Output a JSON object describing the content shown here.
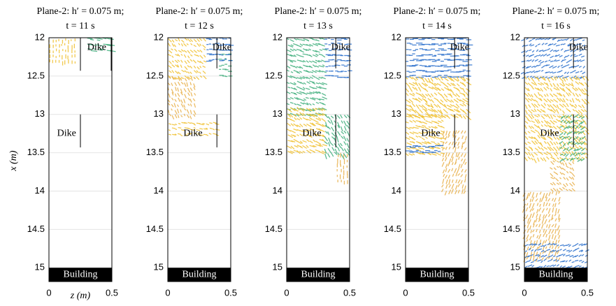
{
  "chart_data": [
    {
      "type": "quiver",
      "title": "Plane-2: h′ = 0.075 m;",
      "subtitle": "t = 11 s",
      "x_label": "z (m)",
      "y_label": "x (m)",
      "xlim": [
        0,
        0.5
      ],
      "xticks": [
        0,
        0.5
      ],
      "ylim": [
        12,
        15.18
      ],
      "yticks": [
        12,
        12.5,
        13,
        13.5,
        14,
        14.5,
        15
      ],
      "grid": true,
      "annotations": [
        "Dike",
        "Dike",
        "Building"
      ]
    },
    {
      "type": "quiver",
      "title": "Plane-2: h′ = 0.075 m;",
      "subtitle": "t = 12 s",
      "xlim": [
        0,
        0.5
      ],
      "xticks": [
        0,
        0.5
      ],
      "ylim": [
        12,
        15.18
      ],
      "yticks": [
        12,
        12.5,
        13,
        13.5,
        14,
        14.5,
        15
      ],
      "grid": true,
      "annotations": [
        "Dike",
        "Dike",
        "Building"
      ]
    },
    {
      "type": "quiver",
      "title": "Plane-2: h′ = 0.075 m;",
      "subtitle": "t = 13 s",
      "xlim": [
        0,
        0.5
      ],
      "xticks": [
        0,
        0.5
      ],
      "ylim": [
        12,
        15.18
      ],
      "yticks": [
        12,
        12.5,
        13,
        13.5,
        14,
        14.5,
        15
      ],
      "grid": true,
      "annotations": [
        "Dike",
        "Dike",
        "Building"
      ]
    },
    {
      "type": "quiver",
      "title": "Plane-2: h′ = 0.075 m;",
      "subtitle": "t = 14 s",
      "xlim": [
        0,
        0.5
      ],
      "xticks": [
        0,
        0.5
      ],
      "ylim": [
        12,
        15.18
      ],
      "yticks": [
        12,
        12.5,
        13,
        13.5,
        14,
        14.5,
        15
      ],
      "grid": true,
      "annotations": [
        "Dike",
        "Dike",
        "Building"
      ]
    },
    {
      "type": "quiver",
      "title": "Plane-2: h′ = 0.075 m;",
      "subtitle": "t = 16 s",
      "xlim": [
        0,
        0.5
      ],
      "xticks": [
        0,
        0.5
      ],
      "ylim": [
        12,
        15.18
      ],
      "yticks": [
        12,
        12.5,
        13,
        13.5,
        14,
        14.5,
        15
      ],
      "grid": true,
      "annotations": [
        "Dike",
        "Dike",
        "Building"
      ]
    }
  ]
}
